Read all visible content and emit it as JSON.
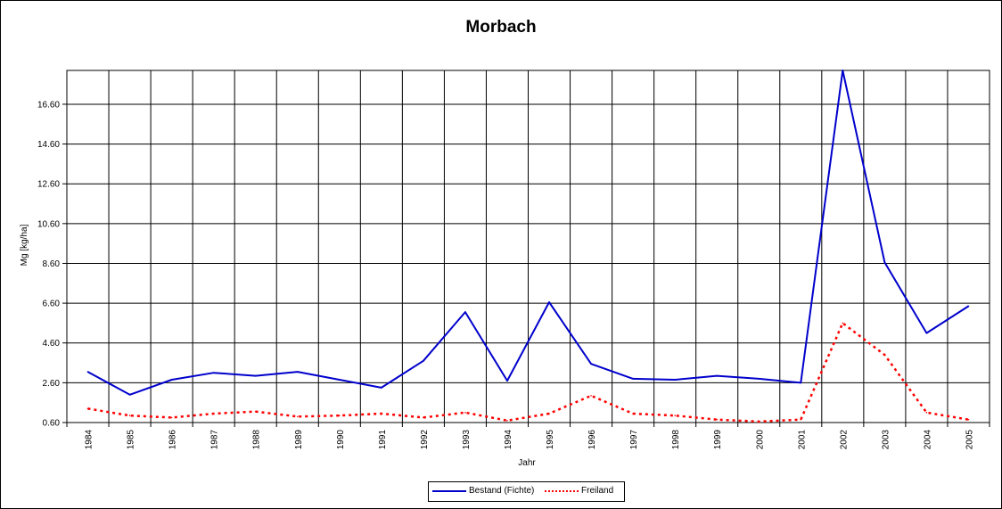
{
  "chart_data": {
    "type": "line",
    "title": "Morbach",
    "xlabel": "Jahr",
    "ylabel": "Mg [kg/ha]",
    "ylim": [
      0.6,
      18.3
    ],
    "yticks": [
      "0.60",
      "2.60",
      "4.60",
      "6.60",
      "8.60",
      "10.60",
      "12.60",
      "14.60",
      "16.60"
    ],
    "categories": [
      "1984",
      "1985",
      "1986",
      "1987",
      "1988",
      "1989",
      "1990",
      "1991",
      "1992",
      "1993",
      "1994",
      "1995",
      "1996",
      "1997",
      "1998",
      "1999",
      "2000",
      "2001",
      "2002",
      "2003",
      "2004",
      "2005"
    ],
    "grid": true,
    "legend_position": "bottom",
    "series": [
      {
        "name": "Bestand (Fichte)",
        "color": "#0000CC",
        "style": "solid",
        "values": [
          3.15,
          2.0,
          2.75,
          3.1,
          2.95,
          3.15,
          2.75,
          2.35,
          3.7,
          6.15,
          2.7,
          6.65,
          3.55,
          2.8,
          2.75,
          2.95,
          2.8,
          2.6,
          18.3,
          8.65,
          5.1,
          6.45
        ]
      },
      {
        "name": "Freiland",
        "color": "#FF0000",
        "style": "dotted",
        "values": [
          1.3,
          0.95,
          0.85,
          1.05,
          1.15,
          0.9,
          0.95,
          1.05,
          0.85,
          1.1,
          0.7,
          1.05,
          1.95,
          1.05,
          0.95,
          0.75,
          0.65,
          0.75,
          5.6,
          4.0,
          1.1,
          0.75
        ]
      }
    ]
  }
}
